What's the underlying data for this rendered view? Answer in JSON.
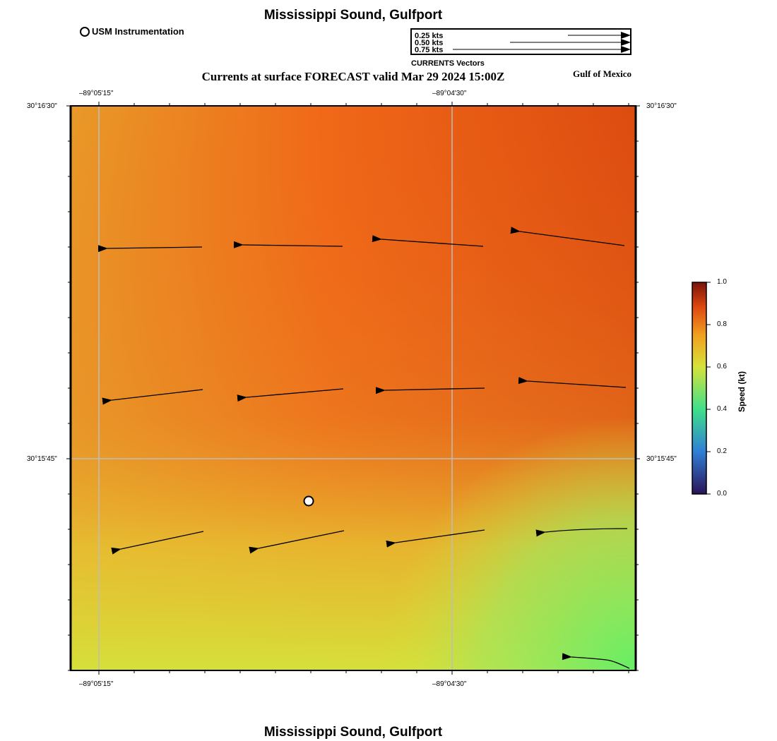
{
  "title": "Mississippi Sound, Gulfport",
  "footer_title": "Mississippi Sound, Gulfport",
  "legend": {
    "marker_label": "USM Instrumentation"
  },
  "subtitle": "Currents at surface FORECAST valid Mar 29 2024 15:00Z",
  "region_label": "Gulf of Mexico",
  "vector_key": {
    "caption": "CURRENTS Vectors",
    "entries": [
      {
        "label": "0.25 kts",
        "speed": 0.25
      },
      {
        "label": "0.50 kts",
        "speed": 0.5
      },
      {
        "label": "0.75 kts",
        "speed": 0.75
      }
    ]
  },
  "axes": {
    "x_ticks": [
      {
        "label": "–89°05'15\""
      },
      {
        "label": "–89°04'30\""
      }
    ],
    "y_ticks": [
      {
        "label": "30°16'30\""
      },
      {
        "label": "30°15'45\""
      }
    ]
  },
  "colorbar": {
    "title": "Speed (kt)",
    "ticks": [
      "1.0",
      "0.8",
      "0.6",
      "0.4",
      "0.2",
      "0.0"
    ],
    "min": 0.0,
    "max": 1.0,
    "colors": [
      "#2a1458",
      "#2f7fd6",
      "#3fe08a",
      "#d6e23a",
      "#f0a020",
      "#e04a10",
      "#7a1208"
    ]
  },
  "colors": {
    "grid": "#bdbdbd",
    "field_orange": "#f06418",
    "field_dark": "#d84a10",
    "field_yellow": "#dcdc3a",
    "field_green": "#66ee66"
  }
}
